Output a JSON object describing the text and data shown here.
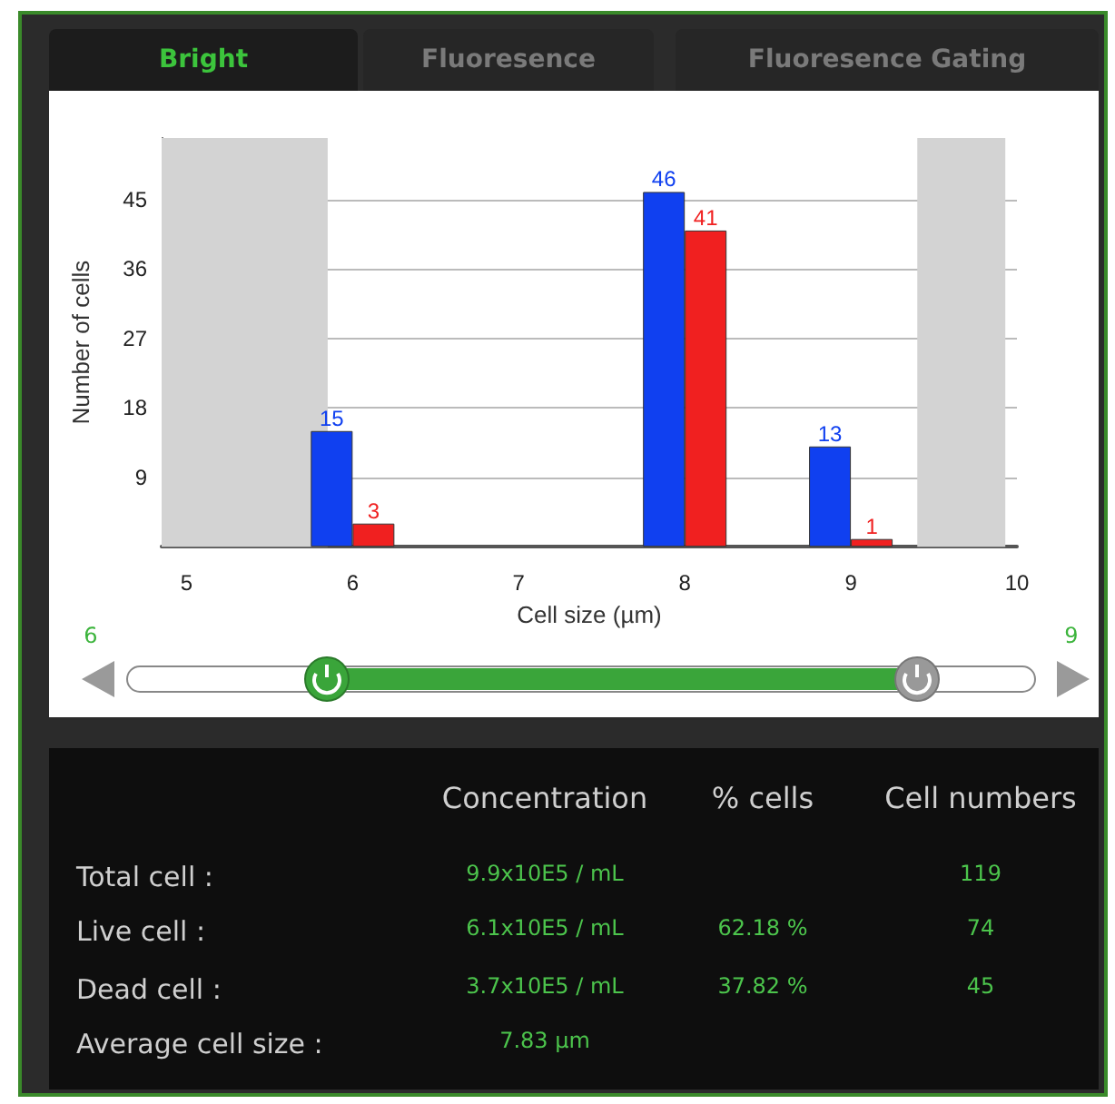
{
  "chart_data": {
    "type": "bar",
    "xlabel": "Cell size (µm)",
    "ylabel": "Number of cells",
    "x": [
      6,
      8,
      9
    ],
    "series": [
      {
        "color": "#1040f0",
        "values": [
          15,
          46,
          13
        ]
      },
      {
        "color": "#f02020",
        "values": [
          3,
          41,
          1
        ]
      }
    ],
    "data_labels": true,
    "xlim": [
      4.85,
      10
    ],
    "xticks": [
      5,
      6,
      7,
      8,
      9,
      10
    ],
    "ylim": [
      0,
      53
    ],
    "yticks": [
      9,
      18,
      27,
      36,
      45
    ],
    "grid": "y",
    "bands": [
      {
        "axis": "x",
        "from": 4.85,
        "to": 5.85,
        "color": "#d3d3d3"
      },
      {
        "axis": "x",
        "from": 9.4,
        "to": 9.93,
        "color": "#d3d3d3"
      }
    ],
    "annotations": [
      "Bright",
      "Fluoresence",
      "Fluoresence Gating",
      "6",
      "9",
      "Concentration",
      "% cells",
      "Cell numbers",
      "Total cell :",
      "9.9x10E5 / mL",
      "119",
      "Live cell :",
      "6.1x10E5 / mL",
      "62.18 %",
      "74",
      "Dead cell :",
      "3.7x10E5 / mL",
      "37.82 %",
      "45",
      "Average cell size :",
      "7.83 µm"
    ]
  }
}
